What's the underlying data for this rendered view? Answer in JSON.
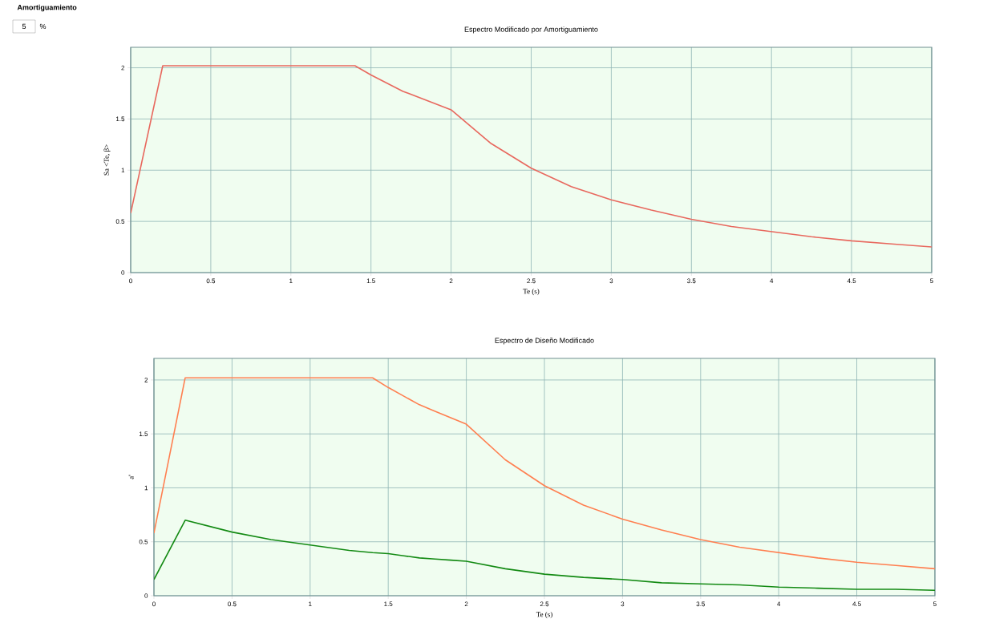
{
  "chart_data": [
    {
      "type": "line",
      "title": "Espectro Modificado por Amortiguamiento",
      "xlabel": "Te (s)",
      "ylabel": "Sa <Te, β>",
      "annotations": [
        "Amortiguamiento",
        "5",
        "%"
      ],
      "x": [
        0,
        0.2,
        1.4,
        1.5,
        1.6,
        1.7,
        1.8,
        1.9,
        2,
        2.25,
        2.5,
        2.75,
        3,
        3.25,
        3.5,
        3.75,
        4,
        4.25,
        4.5,
        4.75,
        5
      ],
      "series": [
        {
          "color": "#e8685e",
          "values": [
            0.58,
            2.02,
            2.02,
            1.93,
            1.85,
            1.77,
            1.71,
            1.65,
            1.59,
            1.26,
            1.02,
            0.84,
            0.71,
            0.61,
            0.52,
            0.45,
            0.4,
            0.35,
            0.31,
            0.28,
            0.25
          ]
        }
      ],
      "xlim": [
        0,
        5
      ],
      "ylim": [
        0,
        2.2
      ],
      "xticks": [
        0,
        0.5,
        1,
        1.5,
        2,
        2.5,
        3,
        3.5,
        4,
        4.5,
        5
      ],
      "yticks": [
        0,
        0.5,
        1,
        1.5,
        2
      ],
      "grid": true,
      "line_style": "solid"
    },
    {
      "type": "line",
      "title": "Espectro de Diseño Modificado",
      "xlabel": "Te (s)",
      "ylabel": "a'",
      "x": [
        0,
        0.2,
        0.5,
        0.75,
        1,
        1.25,
        1.4,
        1.5,
        1.6,
        1.7,
        1.8,
        1.9,
        2,
        2.25,
        2.5,
        2.75,
        3,
        3.25,
        3.5,
        3.75,
        4,
        4.25,
        4.5,
        4.75,
        5
      ],
      "series": [
        {
          "color": "#ff7f50",
          "values": [
            0.58,
            2.02,
            2.02,
            2.02,
            2.02,
            2.02,
            2.02,
            1.93,
            1.85,
            1.77,
            1.71,
            1.65,
            1.59,
            1.26,
            1.02,
            0.84,
            0.71,
            0.61,
            0.52,
            0.45,
            0.4,
            0.35,
            0.31,
            0.28,
            0.25
          ]
        },
        {
          "color": "#138a13",
          "values": [
            0.15,
            0.7,
            0.59,
            0.52,
            0.47,
            0.42,
            0.4,
            0.39,
            0.37,
            0.35,
            0.34,
            0.33,
            0.32,
            0.25,
            0.2,
            0.17,
            0.15,
            0.12,
            0.11,
            0.1,
            0.08,
            0.07,
            0.06,
            0.06,
            0.05
          ]
        }
      ],
      "xlim": [
        0,
        5
      ],
      "ylim": [
        0,
        2.2
      ],
      "xticks": [
        0,
        0.5,
        1,
        1.5,
        2,
        2.5,
        3,
        3.5,
        4,
        4.5,
        5
      ],
      "yticks": [
        0,
        0.5,
        1,
        1.5,
        2
      ],
      "grid": true,
      "line_style": "solid"
    }
  ]
}
